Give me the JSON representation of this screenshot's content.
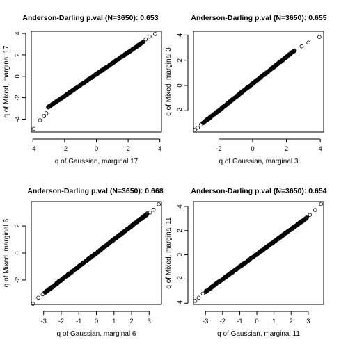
{
  "chart_data": [
    {
      "type": "scatter",
      "title": "Anderson-Darling p.val (N=3650): 0.653",
      "xlabel": "q of Gaussian, marginal 17",
      "ylabel": "q of Mixed, marginal 17",
      "xlim": [
        -4.1,
        4.1
      ],
      "ylim": [
        -5.2,
        4.2
      ],
      "xticks": [
        -4,
        -2,
        0,
        2,
        4
      ],
      "yticks": [
        -4,
        -2,
        0,
        2,
        4
      ],
      "n_points": 3650,
      "outliers": [
        [
          -3.95,
          -4.9
        ],
        [
          -3.55,
          -4.1
        ],
        [
          -3.3,
          -3.7
        ],
        [
          -3.15,
          -3.45
        ],
        [
          3.1,
          3.45
        ],
        [
          3.35,
          3.7
        ],
        [
          3.7,
          3.95
        ]
      ],
      "band_lo": [
        -3.05,
        -2.9
      ],
      "band_hi": [
        2.95,
        3.2
      ]
    },
    {
      "type": "scatter",
      "title": "Anderson-Darling p.val (N=3650): 0.655",
      "xlabel": "q of Gaussian, marginal 3",
      "ylabel": "q of Mixed, marginal 3",
      "xlim": [
        -3.5,
        4.2
      ],
      "ylim": [
        -3.7,
        4.3
      ],
      "xticks": [
        -2,
        0,
        2,
        4
      ],
      "yticks": [
        -2,
        0,
        2,
        4
      ],
      "n_points": 3650,
      "outliers": [
        [
          -3.4,
          -3.5
        ],
        [
          -3.25,
          -3.35
        ],
        [
          -3.05,
          -3.1
        ],
        [
          2.9,
          3.1
        ],
        [
          3.3,
          3.4
        ],
        [
          3.95,
          3.85
        ]
      ],
      "band_lo": [
        -2.95,
        -3.0
      ],
      "band_hi": [
        2.5,
        2.8
      ]
    },
    {
      "type": "scatter",
      "title": "Anderson-Darling p.val (N=3650): 0.668",
      "xlabel": "q of Gaussian, marginal 6",
      "ylabel": "q of Mixed, marginal 6",
      "xlim": [
        -3.7,
        3.7
      ],
      "ylim": [
        -3.8,
        3.8
      ],
      "xticks": [
        -3,
        -2,
        -1,
        0,
        1,
        2,
        3
      ],
      "yticks": [
        -2,
        0,
        2
      ],
      "n_points": 3650,
      "outliers": [
        [
          -3.6,
          -3.75
        ],
        [
          -3.3,
          -3.3
        ],
        [
          -3.05,
          -3.05
        ],
        [
          3.05,
          3.0
        ],
        [
          3.25,
          3.2
        ],
        [
          3.55,
          3.6
        ]
      ],
      "band_lo": [
        -2.95,
        -2.95
      ],
      "band_hi": [
        2.9,
        2.9
      ]
    },
    {
      "type": "scatter",
      "title": "Anderson-Darling p.val (N=3650): 0.654",
      "xlabel": "q of Gaussian, marginal 11",
      "ylabel": "q of Mixed, marginal 11",
      "xlim": [
        -3.7,
        3.9
      ],
      "ylim": [
        -4.1,
        4.4
      ],
      "xticks": [
        -3,
        -2,
        -1,
        0,
        1,
        2,
        3
      ],
      "yticks": [
        -4,
        -2,
        0,
        2,
        4
      ],
      "n_points": 3650,
      "outliers": [
        [
          -3.6,
          -3.8
        ],
        [
          -3.4,
          -3.55
        ],
        [
          -3.15,
          -3.2
        ],
        [
          3.1,
          3.3
        ],
        [
          3.4,
          3.7
        ],
        [
          3.75,
          4.2
        ]
      ],
      "band_lo": [
        -3.0,
        -3.05
      ],
      "band_hi": [
        2.95,
        3.1
      ]
    }
  ]
}
